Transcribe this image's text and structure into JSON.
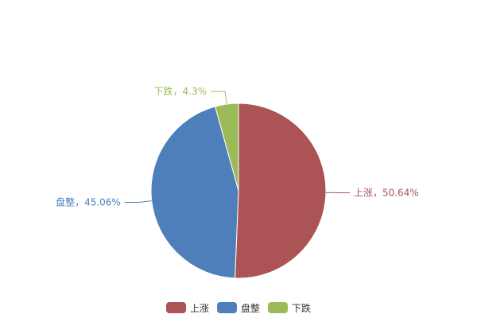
{
  "chart_data": {
    "type": "pie",
    "title": "",
    "slices": [
      {
        "name": "上涨",
        "value": 50.64,
        "label": "上涨，50.64%",
        "color": "#ab5355"
      },
      {
        "name": "盘整",
        "value": 45.06,
        "label": "盘整，45.06%",
        "color": "#4f7fbb"
      },
      {
        "name": "下跌",
        "value": 4.3,
        "label": "下跌，4.3%",
        "color": "#9bbb59"
      }
    ],
    "start_angle": "top, clockwise",
    "legend": {
      "placement": "bottom",
      "entries": [
        "上涨",
        "盘整",
        "下跌"
      ]
    }
  }
}
